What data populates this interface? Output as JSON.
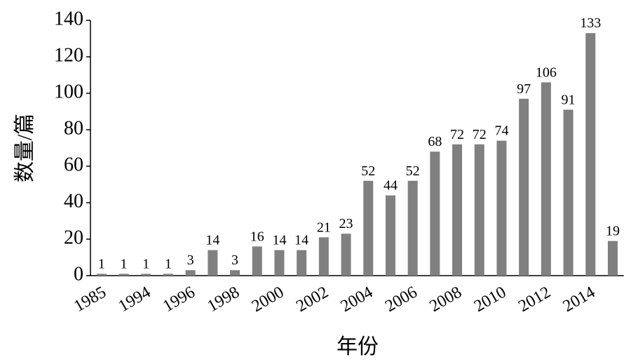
{
  "chart_data": {
    "type": "bar",
    "x_label": "年份",
    "y_label": "数量/篇",
    "categories": [
      "1985",
      null,
      "1994",
      null,
      "1996",
      null,
      "1998",
      null,
      "2000",
      null,
      "2002",
      null,
      "2004",
      null,
      "2006",
      null,
      "2008",
      null,
      "2010",
      null,
      "2012",
      null,
      "2014",
      null
    ],
    "values": [
      1,
      1,
      1,
      1,
      3,
      14,
      3,
      16,
      14,
      14,
      21,
      23,
      52,
      44,
      52,
      68,
      72,
      72,
      74,
      97,
      106,
      91,
      133,
      19
    ],
    "color": "#808080",
    "ylim": [
      0,
      140
    ],
    "yticks": [
      0,
      20,
      40,
      60,
      80,
      100,
      120,
      140
    ]
  }
}
